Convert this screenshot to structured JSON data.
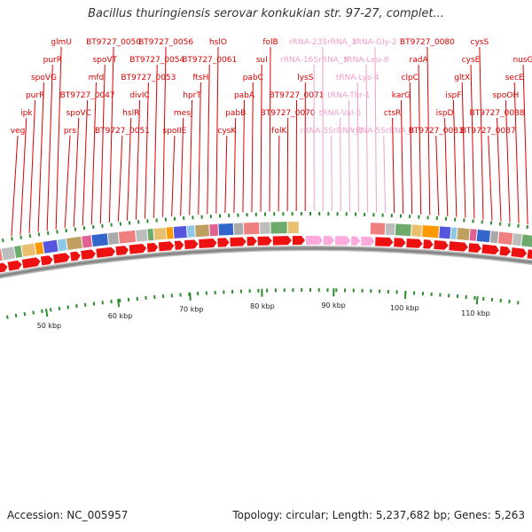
{
  "title": "Bacillus thuringiensis serovar konkukian str. 97-27, complet...",
  "footer": {
    "accession": "Accession: NC_005957",
    "summary": "Topology: circular; Length: 5,237,682 bp; Genes: 5,263"
  },
  "colors": {
    "gene_label": "#dd0000",
    "rna_label": "#f0a0c8",
    "forward_arrow": "#ee1111",
    "rna_arrow": "#ffaadd",
    "tick": "#2e8b2e",
    "backbone": "#888888"
  },
  "axis": {
    "unit": "kbp",
    "ticks": [
      {
        "kbp": 50,
        "label": "50 kbp"
      },
      {
        "kbp": 60,
        "label": "60 kbp"
      },
      {
        "kbp": 70,
        "label": "70 kbp"
      },
      {
        "kbp": 80,
        "label": "80 kbp"
      },
      {
        "kbp": 90,
        "label": "90 kbp"
      },
      {
        "kbp": 100,
        "label": "100 kbp"
      },
      {
        "kbp": 110,
        "label": "110 kbp"
      }
    ]
  },
  "gene_labels": [
    {
      "name": "veg",
      "kind": "gene"
    },
    {
      "name": "ipk",
      "kind": "gene"
    },
    {
      "name": "purR",
      "kind": "gene"
    },
    {
      "name": "spoVG",
      "kind": "gene"
    },
    {
      "name": "purR",
      "kind": "gene"
    },
    {
      "name": "glmU",
      "kind": "gene"
    },
    {
      "name": "prs",
      "kind": "gene"
    },
    {
      "name": "spoVC",
      "kind": "gene"
    },
    {
      "name": "BT9727_0047",
      "kind": "gene"
    },
    {
      "name": "mfd",
      "kind": "gene"
    },
    {
      "name": "spoVT",
      "kind": "gene"
    },
    {
      "name": "BT9727_0050",
      "kind": "gene"
    },
    {
      "name": "BT9727_0051",
      "kind": "gene"
    },
    {
      "name": "hslR",
      "kind": "gene"
    },
    {
      "name": "divIC",
      "kind": "gene"
    },
    {
      "name": "BT9727_0053",
      "kind": "gene"
    },
    {
      "name": "BT9727_0054",
      "kind": "gene"
    },
    {
      "name": "BT9727_0056",
      "kind": "gene"
    },
    {
      "name": "spoIIE",
      "kind": "gene"
    },
    {
      "name": "mesJ",
      "kind": "gene"
    },
    {
      "name": "hprT",
      "kind": "gene"
    },
    {
      "name": "ftsH",
      "kind": "gene"
    },
    {
      "name": "BT9727_0061",
      "kind": "gene"
    },
    {
      "name": "hslO",
      "kind": "gene"
    },
    {
      "name": "cysK",
      "kind": "gene"
    },
    {
      "name": "pabB",
      "kind": "gene"
    },
    {
      "name": "pabA",
      "kind": "gene"
    },
    {
      "name": "pabC",
      "kind": "gene"
    },
    {
      "name": "sul",
      "kind": "gene"
    },
    {
      "name": "folB",
      "kind": "gene"
    },
    {
      "name": "folK",
      "kind": "gene"
    },
    {
      "name": "BT9727_0070",
      "kind": "gene"
    },
    {
      "name": "BT9727_0071",
      "kind": "gene"
    },
    {
      "name": "lysS",
      "kind": "gene"
    },
    {
      "name": "rRNA-16SrRNA_3",
      "kind": "rna"
    },
    {
      "name": "rRNA-23SrRNA_3",
      "kind": "rna"
    },
    {
      "name": "rRNA-5SrRNA_3",
      "kind": "rna"
    },
    {
      "name": "tRNA-Val-5",
      "kind": "rna"
    },
    {
      "name": "tRNA-Thr-1",
      "kind": "rna"
    },
    {
      "name": "tRNA-Lys-4",
      "kind": "rna"
    },
    {
      "name": "tRNA-Leu-8",
      "kind": "rna"
    },
    {
      "name": "tRNA-Gly-2",
      "kind": "rna"
    },
    {
      "name": "rRNA-5SrRNA_4",
      "kind": "rna"
    },
    {
      "name": "ctsR",
      "kind": "gene"
    },
    {
      "name": "karG",
      "kind": "gene"
    },
    {
      "name": "clpC",
      "kind": "gene"
    },
    {
      "name": "radA",
      "kind": "gene"
    },
    {
      "name": "BT9727_0080",
      "kind": "gene"
    },
    {
      "name": "BT9727_0081",
      "kind": "gene"
    },
    {
      "name": "ispD",
      "kind": "gene"
    },
    {
      "name": "ispF",
      "kind": "gene"
    },
    {
      "name": "gltX",
      "kind": "gene"
    },
    {
      "name": "cysE",
      "kind": "gene"
    },
    {
      "name": "cysS",
      "kind": "gene"
    },
    {
      "name": "BT9727_0087",
      "kind": "gene"
    },
    {
      "name": "BT9727_0088",
      "kind": "gene"
    },
    {
      "name": "spoOH",
      "kind": "gene"
    },
    {
      "name": "secE",
      "kind": "gene"
    },
    {
      "name": "nusG",
      "kind": "gene"
    }
  ]
}
